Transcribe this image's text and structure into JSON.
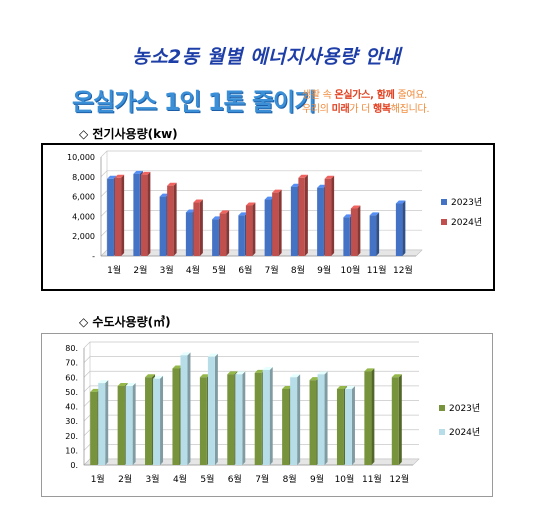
{
  "page": {
    "title": "농소2동 월별 에너지사용량 안내",
    "slogan_main": "온실가스 1인 1톤 줄이기",
    "slogan_sub_line1_a": "생활 속 ",
    "slogan_sub_line1_b": "온실가스, 함께",
    "slogan_sub_line1_c": " 줄여요.",
    "slogan_sub_line2_a": "우리의 ",
    "slogan_sub_line2_b": "미래",
    "slogan_sub_line2_c": "가 더 ",
    "slogan_sub_line2_d": "행복",
    "slogan_sub_line2_e": "해집니다."
  },
  "sections": {
    "electricity_title": "◇ 전기사용량(kw)",
    "water_title": "◇ 수도사용량(㎥)"
  },
  "chart_data": [
    {
      "type": "bar",
      "title": "전기사용량(kw)",
      "categories": [
        "1월",
        "2월",
        "3월",
        "4월",
        "5월",
        "6월",
        "7월",
        "8월",
        "9월",
        "10월",
        "11월",
        "12월"
      ],
      "y_tick_labels": [
        "-",
        "2,000",
        "4,000",
        "6,000",
        "8,000",
        "10,000"
      ],
      "ylim": [
        0,
        10000
      ],
      "y_ticks": [
        0,
        2000,
        4000,
        6000,
        8000,
        10000
      ],
      "legend_position": "right",
      "colors": {
        "2023년": "#4472c4",
        "2024년": "#c0504d"
      },
      "series": [
        {
          "name": "2023년",
          "values": [
            7800,
            8300,
            6000,
            4400,
            3700,
            4100,
            5700,
            7000,
            6900,
            3900,
            4100,
            5300
          ]
        },
        {
          "name": "2024년",
          "values": [
            7900,
            8200,
            7100,
            5400,
            4300,
            5100,
            6400,
            7900,
            7800,
            4800,
            null,
            null
          ]
        }
      ]
    },
    {
      "type": "bar",
      "title": "수도사용량(㎥)",
      "categories": [
        "1월",
        "2월",
        "3월",
        "4월",
        "5월",
        "6월",
        "7월",
        "8월",
        "9월",
        "10월",
        "11월",
        "12월"
      ],
      "y_tick_labels": [
        "0.",
        "10.",
        "20.",
        "30.",
        "40.",
        "50.",
        "60.",
        "70.",
        "80."
      ],
      "ylim": [
        0,
        80
      ],
      "y_ticks": [
        0,
        10,
        20,
        30,
        40,
        50,
        60,
        70,
        80
      ],
      "legend_position": "right",
      "colors": {
        "2023년": "#77933c",
        "2024년": "#b7dee8"
      },
      "series": [
        {
          "name": "2023년",
          "values": [
            50,
            54,
            60,
            66,
            60,
            62,
            63,
            52,
            58,
            52,
            64,
            60
          ]
        },
        {
          "name": "2024년",
          "values": [
            56,
            54,
            59,
            75,
            74,
            62,
            65,
            60,
            62,
            52,
            null,
            null
          ]
        }
      ]
    }
  ]
}
